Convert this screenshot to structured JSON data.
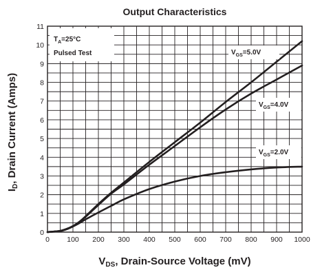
{
  "chart_data": {
    "type": "line",
    "title": "Output Characteristics",
    "xlabel": {
      "main": "V",
      "sub": "DS",
      "rest": ", Drain-Source Voltage (mV)"
    },
    "ylabel": {
      "main": "I",
      "sub": "D",
      "rest": ", Drain Current (Amps)"
    },
    "xlim": [
      0,
      1000
    ],
    "ylim": [
      0,
      11
    ],
    "x_ticks": [
      0,
      100,
      200,
      300,
      400,
      500,
      600,
      700,
      800,
      900,
      1000
    ],
    "y_ticks": [
      0,
      1,
      2,
      3,
      4,
      5,
      6,
      7,
      8,
      9,
      10,
      11
    ],
    "x_minor_step": 50,
    "y_minor_step": 0.5,
    "grid": true,
    "conditions": {
      "line1": {
        "main": "T",
        "sub": "A",
        "rest": "=25°C"
      },
      "line2": "Pulsed Test"
    },
    "series": [
      {
        "name": {
          "main": "V",
          "sub": "GS",
          "rest": "=5.0V"
        },
        "x": [
          0,
          50,
          75,
          100,
          125,
          150,
          200,
          250,
          300,
          400,
          500,
          600,
          700,
          800,
          900,
          1000
        ],
        "y": [
          0,
          0.07,
          0.17,
          0.32,
          0.55,
          0.85,
          1.5,
          2.1,
          2.65,
          3.75,
          4.8,
          5.85,
          6.95,
          8.0,
          9.1,
          10.2
        ]
      },
      {
        "name": {
          "main": "V",
          "sub": "GS",
          "rest": "=4.0V"
        },
        "x": [
          0,
          50,
          75,
          100,
          125,
          150,
          200,
          250,
          300,
          400,
          500,
          600,
          700,
          800,
          900,
          1000
        ],
        "y": [
          0,
          0.07,
          0.17,
          0.32,
          0.55,
          0.82,
          1.45,
          2.05,
          2.55,
          3.6,
          4.6,
          5.6,
          6.55,
          7.4,
          8.15,
          8.9
        ]
      },
      {
        "name": {
          "main": "V",
          "sub": "GS",
          "rest": "=2.0V"
        },
        "x": [
          0,
          50,
          75,
          100,
          125,
          150,
          200,
          250,
          300,
          400,
          500,
          600,
          700,
          800,
          900,
          1000
        ],
        "y": [
          0,
          0.06,
          0.15,
          0.3,
          0.48,
          0.68,
          1.05,
          1.4,
          1.75,
          2.3,
          2.7,
          3.0,
          3.2,
          3.35,
          3.45,
          3.5
        ]
      }
    ]
  }
}
